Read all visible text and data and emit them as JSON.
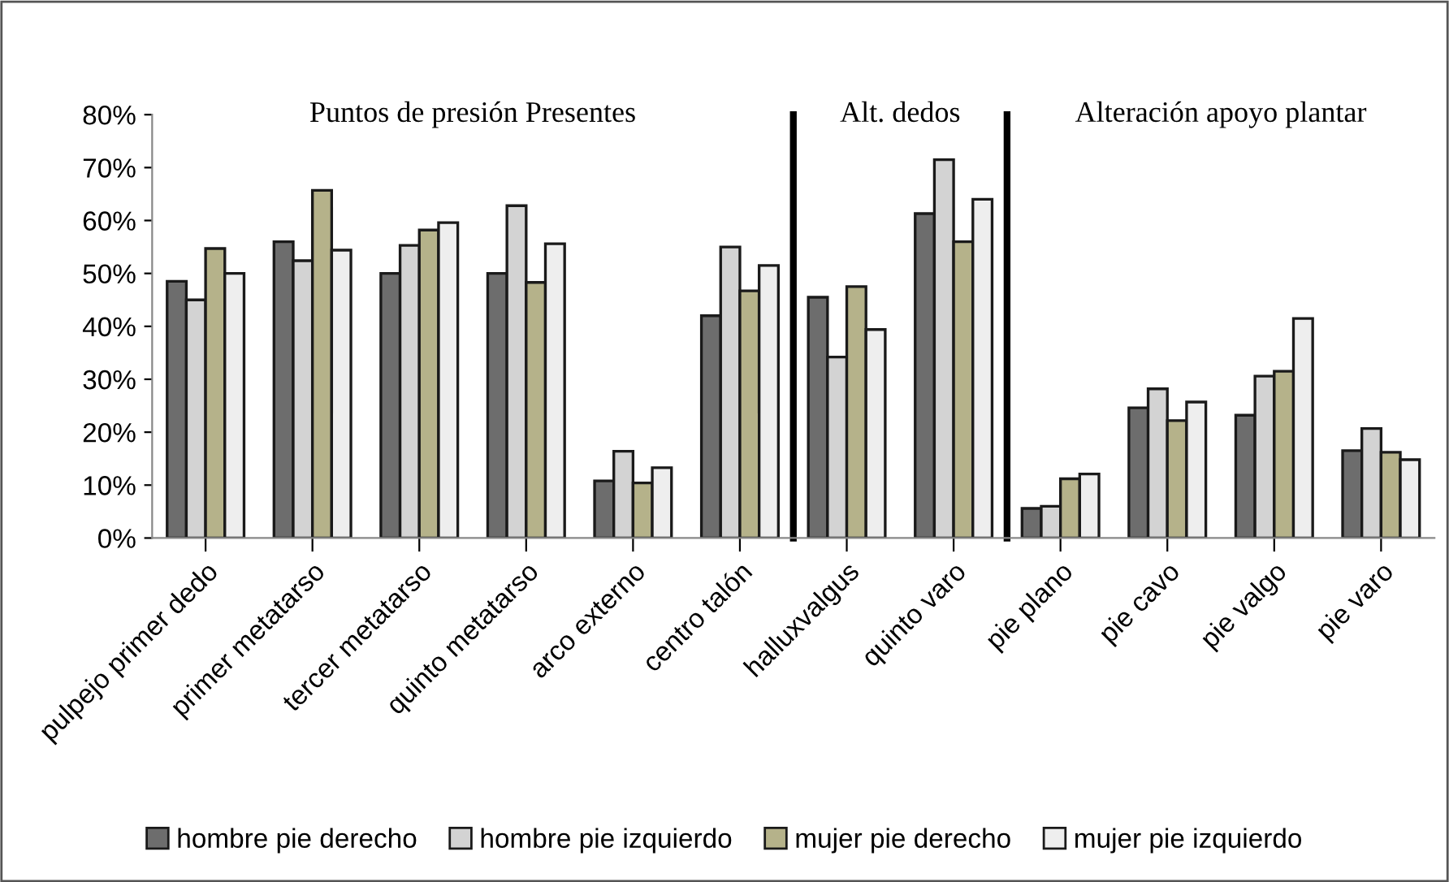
{
  "chart_data": {
    "type": "bar",
    "categories": [
      "pulpejo primer dedo",
      "primer metatarso",
      "tercer metatarso",
      "quinto metatarso",
      "arco externo",
      "centro talón",
      "halluxvalgus",
      "quinto varo",
      "pie plano",
      "pie cavo",
      "pie valgo",
      "pie varo"
    ],
    "series": [
      {
        "name": "hombre pie derecho",
        "color": "#6d6d6d",
        "values": [
          48.5,
          56,
          50,
          50,
          10.8,
          42,
          45.5,
          61.3,
          5.6,
          24.6,
          23.2,
          16.5
        ]
      },
      {
        "name": "hombre pie izquierdo",
        "color": "#d3d3d3",
        "values": [
          45,
          52.4,
          55.3,
          62.8,
          16.4,
          55,
          34.2,
          71.5,
          6,
          28.2,
          30.6,
          20.7
        ]
      },
      {
        "name": "mujer pie derecho",
        "color": "#b5b28a",
        "values": [
          54.7,
          65.7,
          58.2,
          48.3,
          10.4,
          46.7,
          47.5,
          56,
          11.2,
          22.2,
          31.5,
          16.2
        ]
      },
      {
        "name": "mujer pie izquierdo",
        "color": "#eeeeee",
        "values": [
          50,
          54.4,
          59.6,
          55.6,
          13.3,
          51.5,
          39.4,
          64,
          12.1,
          25.7,
          41.5,
          14.8
        ]
      }
    ],
    "ylim": [
      0,
      80
    ],
    "yticks": [
      {
        "value": 0,
        "label": "0%"
      },
      {
        "value": 10,
        "label": "10%"
      },
      {
        "value": 20,
        "label": "20%"
      },
      {
        "value": 30,
        "label": "30%"
      },
      {
        "value": 40,
        "label": "40%"
      },
      {
        "value": 50,
        "label": "50%"
      },
      {
        "value": 60,
        "label": "60%"
      },
      {
        "value": 70,
        "label": "70%"
      },
      {
        "value": 80,
        "label": "80%"
      }
    ],
    "annotations": [
      "Puntos de presión Presentes",
      "Alt. dedos",
      "Alteración apoyo plantar"
    ],
    "grid": false,
    "legend": "bottom"
  }
}
